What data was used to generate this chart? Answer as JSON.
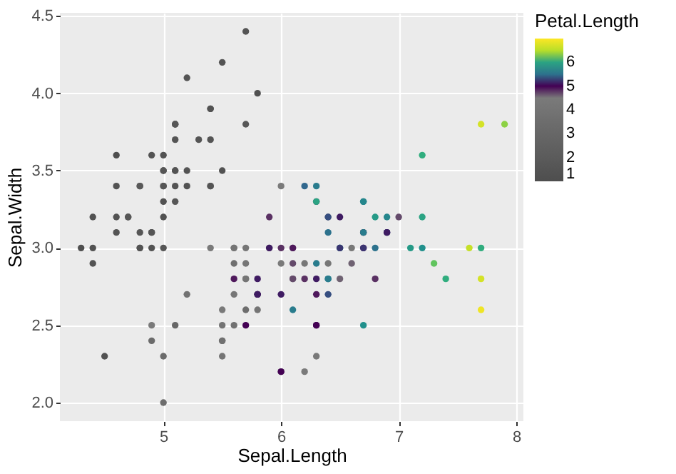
{
  "chart_data": {
    "type": "scatter",
    "xlabel": "Sepal.Length",
    "ylabel": "Sepal.Width",
    "clabel": "Petal.Length",
    "x": [
      5.1,
      4.9,
      4.7,
      4.6,
      5.0,
      5.4,
      4.6,
      5.0,
      4.4,
      4.9,
      5.4,
      4.8,
      4.8,
      4.3,
      5.8,
      5.7,
      5.4,
      5.1,
      5.7,
      5.1,
      5.4,
      5.1,
      4.6,
      5.1,
      4.8,
      5.0,
      5.0,
      5.2,
      5.2,
      4.7,
      4.8,
      5.4,
      5.2,
      5.5,
      4.9,
      5.0,
      5.5,
      4.9,
      4.4,
      5.1,
      5.0,
      4.5,
      4.4,
      5.0,
      5.1,
      4.8,
      5.1,
      4.6,
      5.3,
      5.0,
      7.0,
      6.4,
      6.9,
      5.5,
      6.5,
      5.7,
      6.3,
      4.9,
      6.6,
      5.2,
      5.0,
      5.9,
      6.0,
      6.1,
      5.6,
      6.7,
      5.6,
      5.8,
      6.2,
      5.6,
      5.9,
      6.1,
      6.3,
      6.1,
      6.4,
      6.6,
      6.8,
      6.7,
      6.0,
      5.7,
      5.5,
      5.5,
      5.8,
      6.0,
      5.4,
      6.0,
      6.7,
      6.3,
      5.6,
      5.5,
      5.5,
      6.1,
      5.8,
      5.0,
      5.6,
      5.7,
      5.7,
      6.2,
      5.1,
      5.7,
      6.3,
      5.8,
      7.1,
      6.3,
      6.5,
      7.6,
      4.9,
      7.3,
      6.7,
      7.2,
      6.5,
      6.4,
      6.8,
      5.7,
      5.8,
      6.4,
      6.5,
      7.7,
      7.7,
      6.0,
      6.9,
      5.6,
      7.7,
      6.3,
      6.7,
      7.2,
      6.2,
      6.1,
      6.4,
      7.2,
      7.4,
      7.9,
      6.4,
      6.3,
      6.1,
      7.7,
      6.3,
      6.4,
      6.0,
      6.9,
      6.7,
      6.9,
      5.8,
      6.8,
      6.7,
      6.7,
      6.3,
      6.5,
      6.2,
      5.9
    ],
    "values": [
      3.5,
      3.0,
      3.2,
      3.1,
      3.6,
      3.9,
      3.4,
      3.4,
      2.9,
      3.1,
      3.7,
      3.4,
      3.0,
      3.0,
      4.0,
      4.4,
      3.9,
      3.5,
      3.8,
      3.8,
      3.4,
      3.7,
      3.6,
      3.3,
      3.4,
      3.0,
      3.4,
      3.5,
      3.4,
      3.2,
      3.1,
      3.4,
      4.1,
      4.2,
      3.1,
      3.2,
      3.5,
      3.6,
      3.0,
      3.4,
      3.5,
      2.3,
      3.2,
      3.5,
      3.8,
      3.0,
      3.8,
      3.2,
      3.7,
      3.3,
      3.2,
      3.2,
      3.1,
      2.3,
      2.8,
      2.8,
      3.3,
      2.4,
      2.9,
      2.7,
      2.0,
      3.0,
      2.2,
      2.9,
      2.9,
      3.1,
      3.0,
      2.7,
      2.2,
      2.5,
      3.2,
      2.8,
      2.5,
      2.8,
      2.9,
      3.0,
      2.8,
      3.0,
      2.9,
      2.6,
      2.4,
      2.4,
      2.7,
      2.7,
      3.0,
      3.4,
      3.1,
      2.3,
      3.0,
      2.5,
      2.6,
      3.0,
      2.6,
      2.3,
      2.7,
      3.0,
      2.9,
      2.9,
      2.5,
      2.8,
      3.3,
      2.7,
      3.0,
      2.9,
      3.0,
      3.0,
      2.5,
      2.9,
      2.5,
      3.6,
      3.2,
      2.7,
      3.0,
      2.5,
      2.8,
      3.2,
      3.0,
      3.8,
      2.6,
      2.2,
      3.2,
      2.8,
      2.8,
      2.7,
      3.3,
      3.2,
      2.8,
      3.0,
      2.8,
      3.0,
      2.8,
      3.8,
      2.8,
      2.8,
      2.6,
      3.0,
      3.4,
      3.1,
      3.0,
      3.1,
      3.1,
      3.1,
      2.7,
      3.2,
      3.3,
      3.0,
      2.5,
      3.0,
      3.4,
      3.0
    ],
    "cvalues": [
      1.4,
      1.4,
      1.3,
      1.5,
      1.4,
      1.7,
      1.4,
      1.5,
      1.4,
      1.5,
      1.5,
      1.6,
      1.4,
      1.1,
      1.2,
      1.5,
      1.3,
      1.4,
      1.7,
      1.5,
      1.7,
      1.5,
      1.0,
      1.7,
      1.9,
      1.6,
      1.6,
      1.5,
      1.4,
      1.6,
      1.6,
      1.5,
      1.5,
      1.4,
      1.5,
      1.2,
      1.3,
      1.4,
      1.3,
      1.5,
      1.3,
      1.3,
      1.3,
      1.6,
      1.9,
      1.4,
      1.6,
      1.4,
      1.5,
      1.4,
      4.7,
      4.5,
      4.9,
      4.0,
      4.6,
      4.5,
      4.7,
      3.3,
      4.6,
      3.9,
      3.5,
      4.2,
      4.0,
      4.7,
      3.6,
      4.4,
      4.5,
      4.1,
      4.5,
      3.9,
      4.8,
      4.0,
      4.9,
      4.7,
      4.3,
      4.4,
      4.8,
      5.0,
      4.5,
      3.5,
      3.8,
      3.7,
      3.9,
      5.1,
      4.5,
      4.5,
      4.7,
      4.4,
      4.1,
      4.0,
      4.4,
      4.6,
      4.0,
      3.3,
      4.2,
      4.2,
      4.2,
      4.3,
      3.0,
      4.1,
      6.0,
      5.1,
      5.9,
      5.6,
      5.8,
      6.6,
      4.5,
      6.3,
      5.8,
      6.1,
      5.1,
      5.3,
      5.5,
      5.0,
      5.1,
      5.3,
      5.5,
      6.7,
      6.9,
      5.0,
      5.7,
      4.9,
      6.7,
      4.9,
      5.7,
      6.0,
      4.8,
      4.9,
      5.6,
      5.8,
      6.1,
      6.4,
      5.6,
      5.1,
      5.6,
      6.1,
      5.6,
      5.5,
      4.8,
      5.4,
      5.6,
      5.1,
      5.1,
      5.9,
      5.7,
      5.2,
      5.0,
      5.2,
      5.4,
      5.1
    ],
    "xlim": [
      4.12,
      8.06
    ],
    "xticks": [
      5,
      6,
      7,
      8
    ],
    "ylim": [
      1.88,
      4.52
    ],
    "yticks": [
      {
        "value": 2,
        "label": "2.0"
      },
      2.5,
      {
        "value": 3,
        "label": "3.0"
      },
      3.5,
      {
        "value": 4,
        "label": "4.0"
      },
      4.5
    ],
    "clim": [
      1,
      7.0
    ],
    "cticks": [
      1,
      2,
      3,
      4,
      5,
      6
    ],
    "grid": true,
    "marker": "circle"
  }
}
